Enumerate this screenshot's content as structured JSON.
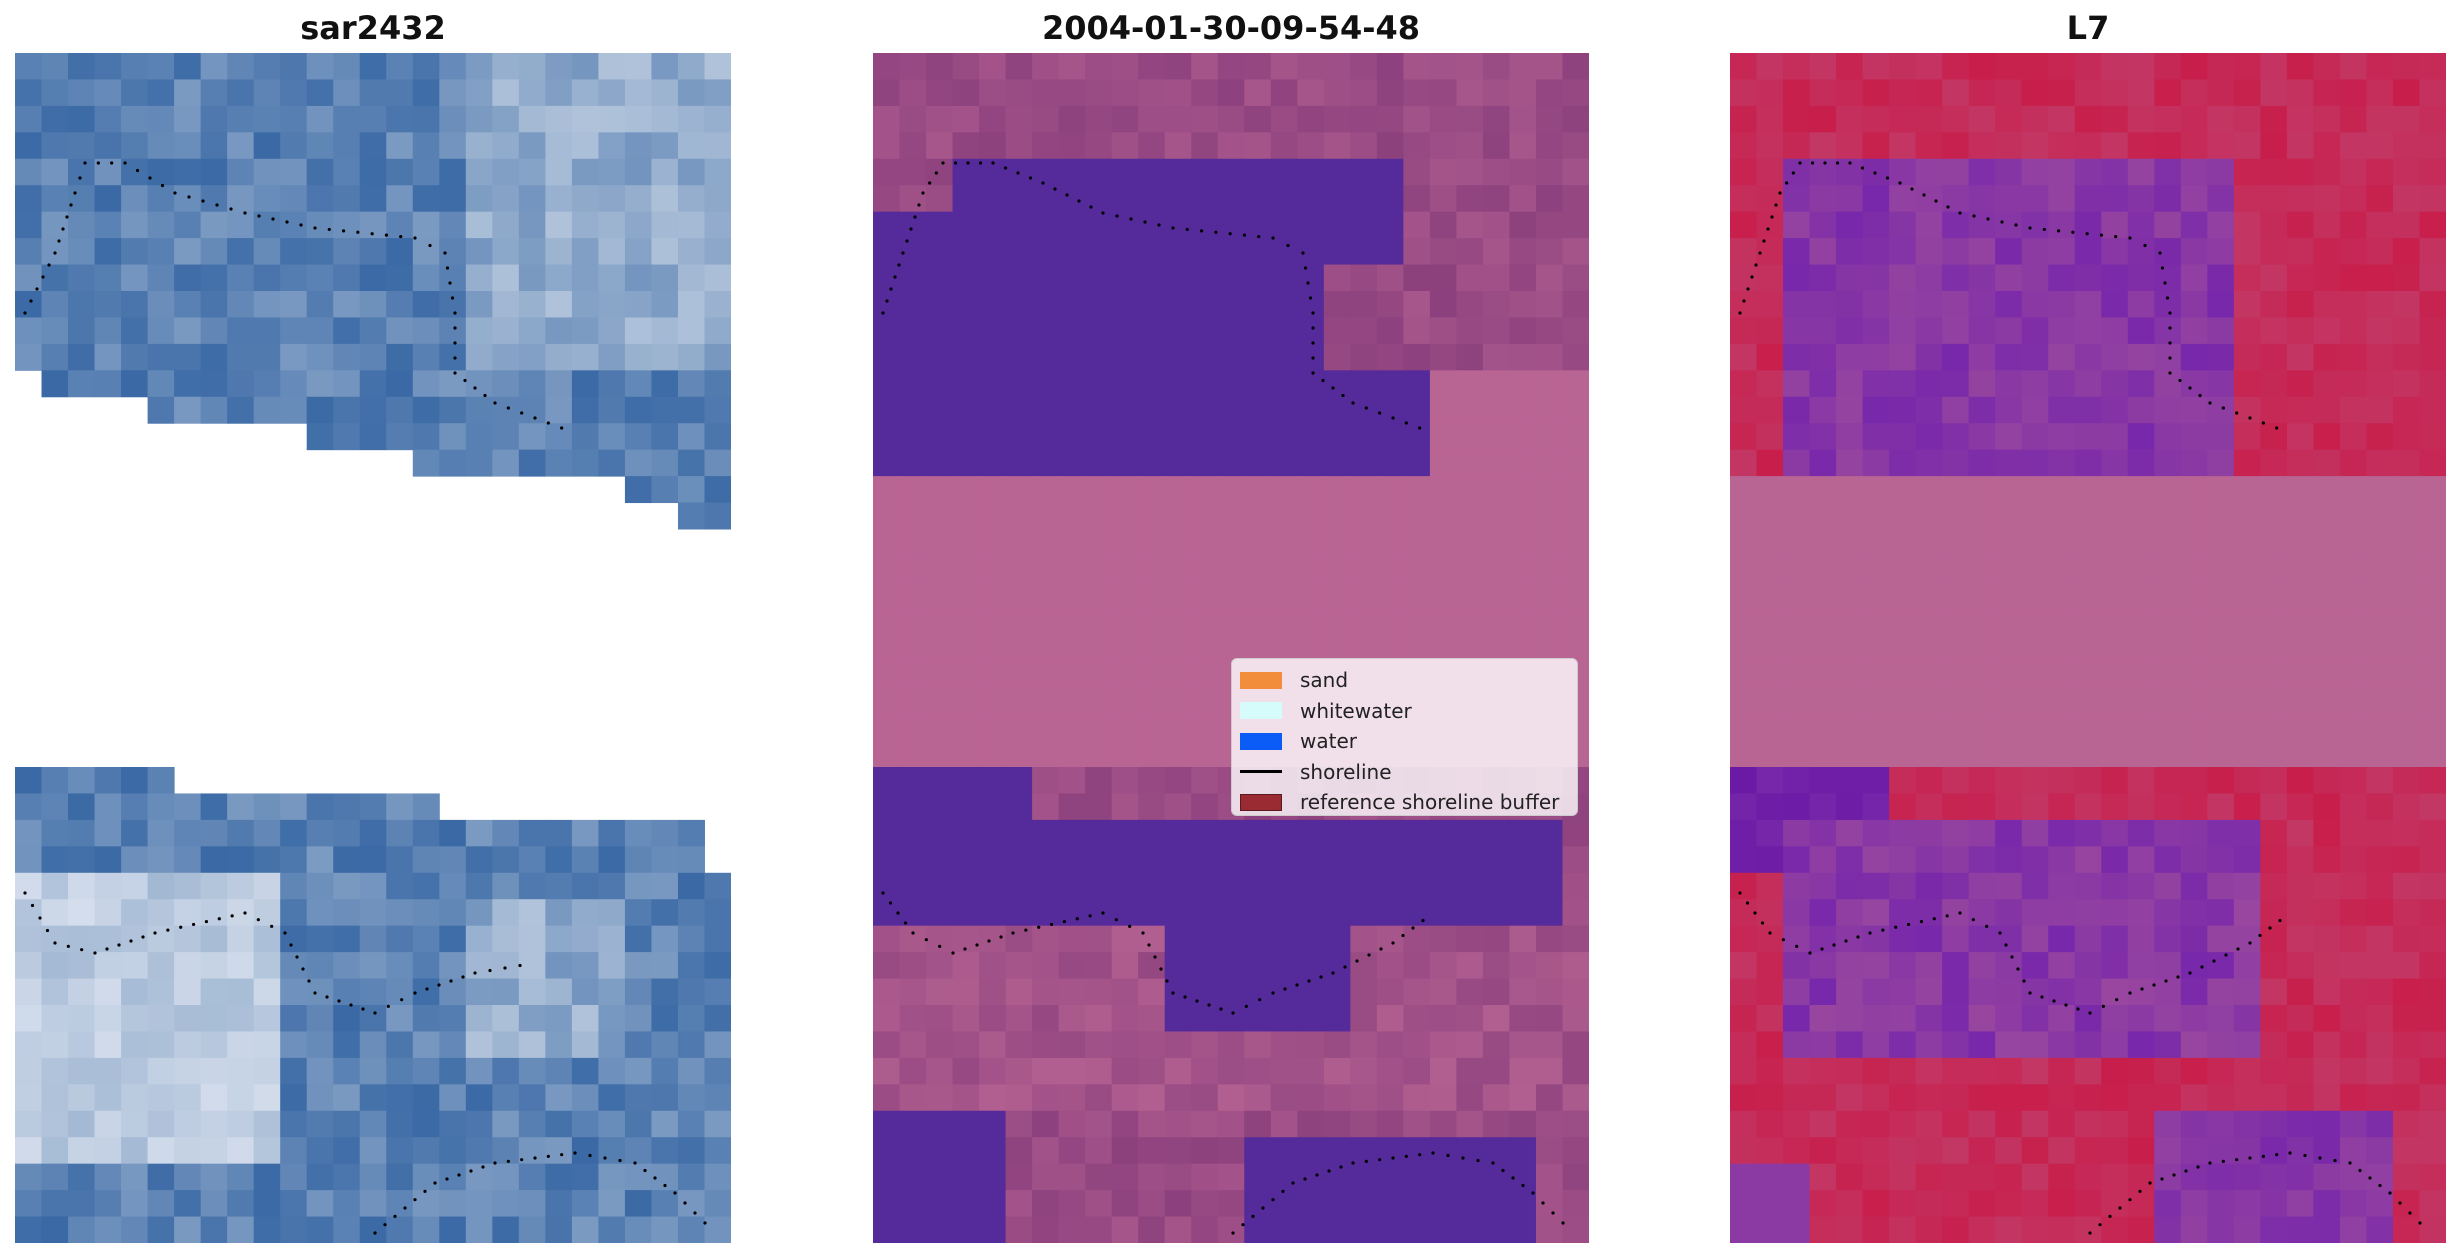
{
  "panels": [
    {
      "title": "sar2432",
      "style": "rgb-image"
    },
    {
      "title": "2004-01-30-09-54-48",
      "style": "classified-image"
    },
    {
      "title": "L7",
      "style": "index-image"
    }
  ],
  "legend": {
    "placement": "center-right of middle panel",
    "items": [
      {
        "label": "sand",
        "color": "#f28e3b",
        "kind": "patch"
      },
      {
        "label": "whitewater",
        "color": "#d6fbfb",
        "kind": "patch"
      },
      {
        "label": "water",
        "color": "#0b5cf7",
        "kind": "patch"
      },
      {
        "label": "shoreline",
        "color": "#000000",
        "kind": "line"
      },
      {
        "label": "reference shoreline buffer",
        "color": "#9a2b32",
        "kind": "patch"
      }
    ]
  },
  "colors": {
    "sea_blue": "#3a6fae",
    "classified_water": "#552a9b",
    "classified_pink": "#b96594",
    "index_red": "#c21e4b",
    "index_purple": "#7a2fae"
  }
}
